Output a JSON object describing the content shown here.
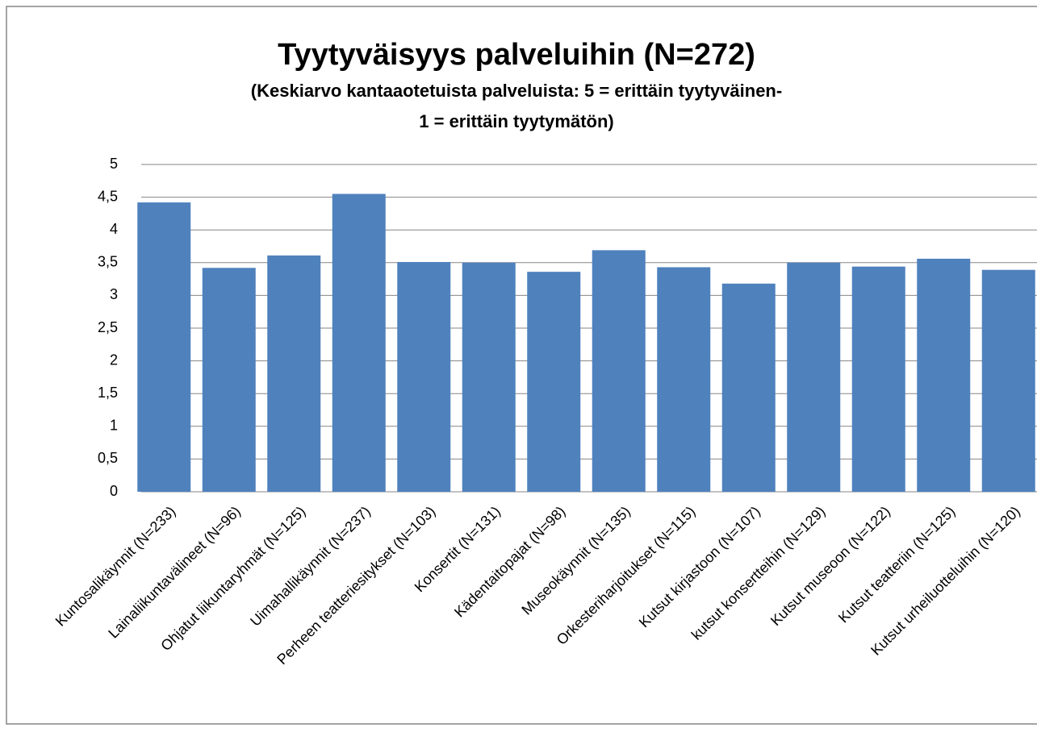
{
  "chart_data": {
    "type": "bar",
    "title": "Tyytyväisyys palveluihin (N=272)",
    "subtitle": [
      "(Keskiarvo kantaaotetuista palveluista: 5 = erittäin tyytyväinen-",
      "1 = erittäin tyytymätön)"
    ],
    "categories": [
      "Kuntosalikäynnit (N=233)",
      "Lainaliikuntavälineet (N=96)",
      "Ohjatut liikuntaryhmät (N=125)",
      "Uimahallikäynnit (N=237)",
      "Perheen teatteriesitykset (N=103)",
      "Konsertit (N=131)",
      "Kädentaitopajat (N=98)",
      "Museokäynnit (N=135)",
      "Orkesteriharjoitukset (N=115)",
      "Kutsut kirjastoon (N=107)",
      "kutsut konsertteihin (N=129)",
      "Kutsut museoon (N=122)",
      "Kutsut teatteriin (N=125)",
      "Kutsut urheiluotteluihin (N=120)"
    ],
    "values": [
      4.42,
      3.42,
      3.61,
      4.55,
      3.51,
      3.5,
      3.36,
      3.69,
      3.43,
      3.18,
      3.5,
      3.44,
      3.56,
      3.39
    ],
    "color": "#4f81bd",
    "ylim": [
      0,
      5
    ],
    "yticks": [
      0,
      {
        "value": 0.5,
        "label": "0,5"
      },
      1,
      {
        "value": 1.5,
        "label": "1,5"
      },
      2,
      {
        "value": 2.5,
        "label": "2,5"
      },
      3,
      {
        "value": 3.5,
        "label": "3,5"
      },
      4,
      {
        "value": 4.5,
        "label": "4,5"
      },
      5
    ],
    "grid": true
  }
}
